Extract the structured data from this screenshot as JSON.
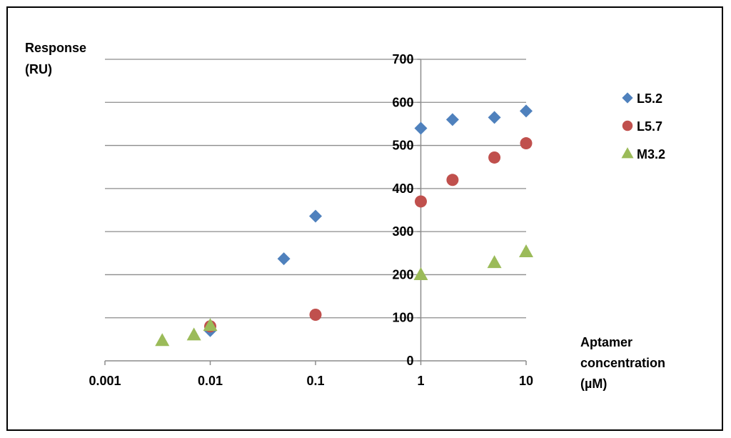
{
  "chart_data": {
    "type": "scatter",
    "x_scale": "log",
    "xlim": [
      0.001,
      10
    ],
    "ylim": [
      0,
      700
    ],
    "x_ticks": [
      "0.001",
      "0.01",
      "0.1",
      "1",
      "10"
    ],
    "y_ticks": [
      "0",
      "100",
      "200",
      "300",
      "400",
      "500",
      "600",
      "700"
    ],
    "y_axis_crosses_x_at": 1,
    "ylabel_lines": [
      "Response",
      "(RU)"
    ],
    "xlabel_lines": [
      "Aptamer",
      "concentration",
      "(µM)"
    ],
    "grid": "horizontal",
    "legend_position": "right",
    "series": [
      {
        "name": "L5.2",
        "marker": "diamond",
        "color": "#4f81bd",
        "points": [
          {
            "x": 0.01,
            "y": 70
          },
          {
            "x": 0.05,
            "y": 237
          },
          {
            "x": 0.1,
            "y": 336
          },
          {
            "x": 1,
            "y": 540
          },
          {
            "x": 2,
            "y": 560
          },
          {
            "x": 5,
            "y": 565
          },
          {
            "x": 10,
            "y": 580
          }
        ]
      },
      {
        "name": "L5.7",
        "marker": "circle",
        "color": "#c0504d",
        "points": [
          {
            "x": 0.01,
            "y": 80
          },
          {
            "x": 0.1,
            "y": 107
          },
          {
            "x": 1,
            "y": 370
          },
          {
            "x": 2,
            "y": 420
          },
          {
            "x": 5,
            "y": 472
          },
          {
            "x": 10,
            "y": 505
          }
        ]
      },
      {
        "name": "M3.2",
        "marker": "triangle",
        "color": "#9bbb59",
        "points": [
          {
            "x": 0.0035,
            "y": 47
          },
          {
            "x": 0.007,
            "y": 60
          },
          {
            "x": 0.01,
            "y": 82
          },
          {
            "x": 1,
            "y": 200
          },
          {
            "x": 5,
            "y": 228
          },
          {
            "x": 10,
            "y": 253
          }
        ]
      }
    ]
  }
}
